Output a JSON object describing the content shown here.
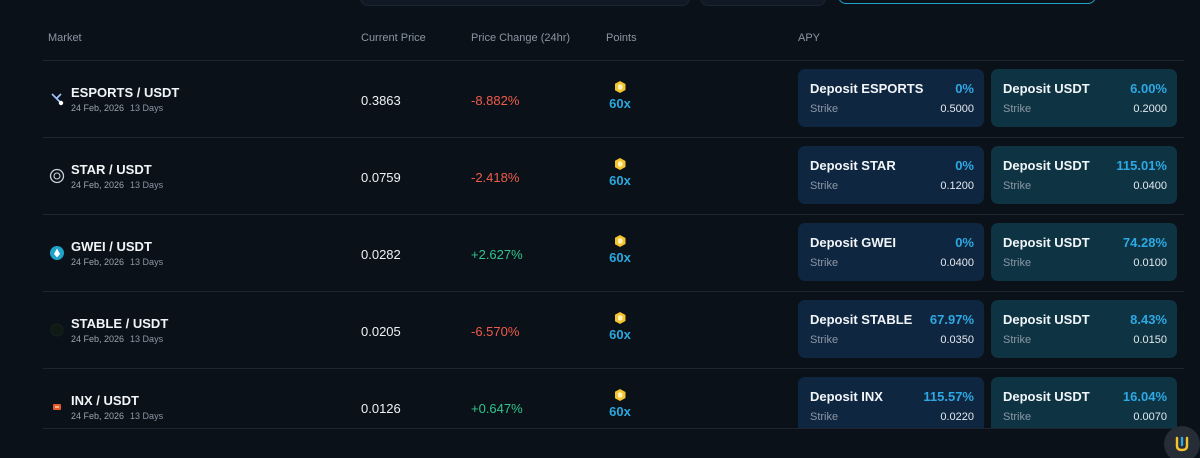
{
  "columns": {
    "market": "Market",
    "current_price": "Current Price",
    "price_change": "Price Change (24hr)",
    "points": "Points",
    "apy": "APY"
  },
  "rows": [
    {
      "pair": "ESPORTS / USDT",
      "date": "24 Feb, 2026",
      "days": "13 Days",
      "icon": "esports-coin-icon",
      "price": "0.3863",
      "change": "-8.882%",
      "change_dir": "neg",
      "points": "60x",
      "deposit_a": {
        "title": "Deposit ESPORTS",
        "apy": "0%",
        "strike_label": "Strike",
        "strike": "0.5000"
      },
      "deposit_b": {
        "title": "Deposit USDT",
        "apy": "6.00%",
        "strike_label": "Strike",
        "strike": "0.2000"
      }
    },
    {
      "pair": "STAR / USDT",
      "date": "24 Feb, 2026",
      "days": "13 Days",
      "icon": "star-coin-icon",
      "price": "0.0759",
      "change": "-2.418%",
      "change_dir": "neg",
      "points": "60x",
      "deposit_a": {
        "title": "Deposit STAR",
        "apy": "0%",
        "strike_label": "Strike",
        "strike": "0.1200"
      },
      "deposit_b": {
        "title": "Deposit USDT",
        "apy": "115.01%",
        "strike_label": "Strike",
        "strike": "0.0400"
      }
    },
    {
      "pair": "GWEI / USDT",
      "date": "24 Feb, 2026",
      "days": "13 Days",
      "icon": "gwei-coin-icon",
      "price": "0.0282",
      "change": "+2.627%",
      "change_dir": "pos",
      "points": "60x",
      "deposit_a": {
        "title": "Deposit GWEI",
        "apy": "0%",
        "strike_label": "Strike",
        "strike": "0.0400"
      },
      "deposit_b": {
        "title": "Deposit USDT",
        "apy": "74.28%",
        "strike_label": "Strike",
        "strike": "0.0100"
      }
    },
    {
      "pair": "STABLE / USDT",
      "date": "24 Feb, 2026",
      "days": "13 Days",
      "icon": "stable-coin-icon",
      "price": "0.0205",
      "change": "-6.570%",
      "change_dir": "neg",
      "points": "60x",
      "deposit_a": {
        "title": "Deposit STABLE",
        "apy": "67.97%",
        "strike_label": "Strike",
        "strike": "0.0350"
      },
      "deposit_b": {
        "title": "Deposit USDT",
        "apy": "8.43%",
        "strike_label": "Strike",
        "strike": "0.0150"
      }
    },
    {
      "pair": "INX / USDT",
      "date": "24 Feb, 2026",
      "days": "13 Days",
      "icon": "inx-coin-icon",
      "price": "0.0126",
      "change": "+0.647%",
      "change_dir": "pos",
      "points": "60x",
      "deposit_a": {
        "title": "Deposit INX",
        "apy": "115.57%",
        "strike_label": "Strike",
        "strike": "0.0220"
      },
      "deposit_b": {
        "title": "Deposit USDT",
        "apy": "16.04%",
        "strike_label": "Strike",
        "strike": "0.0070"
      }
    }
  ],
  "colors": {
    "background": "#0b1118",
    "negative": "#ef5c4b",
    "positive": "#2fc58d",
    "accent": "#2ba9df",
    "points_gold": "#f4c430"
  },
  "floating_button_icon": "assistant-logo-icon"
}
